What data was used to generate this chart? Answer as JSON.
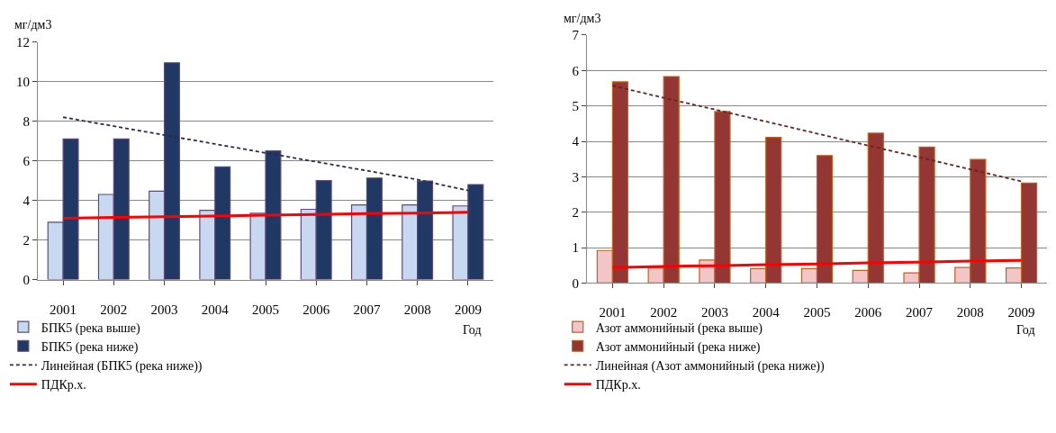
{
  "chart_data": [
    {
      "type": "bar",
      "ylabel": "мг/дм3",
      "xlabel": "Год",
      "categories": [
        "2001",
        "2002",
        "2003",
        "2004",
        "2005",
        "2006",
        "2007",
        "2008",
        "2009"
      ],
      "ylim": [
        0,
        12
      ],
      "yticks": [
        0,
        2,
        4,
        6,
        8,
        10,
        12
      ],
      "grid": "y",
      "legend": "bottom",
      "series": [
        {
          "name": "БПК5 (река выше)",
          "color": "#c6d9f1",
          "values": [
            2.9,
            4.3,
            4.47,
            3.5,
            3.35,
            3.55,
            3.77,
            3.77,
            3.72
          ]
        },
        {
          "name": "БПК5 (река ниже)",
          "color": "#1f3864",
          "values": [
            7.1,
            7.1,
            10.95,
            5.7,
            6.5,
            5.0,
            5.13,
            4.98,
            4.8
          ]
        },
        {
          "name": "Линейная (БПК5 (река ниже))",
          "type": "line",
          "line_style": "dashed",
          "color": "#2b2a4c",
          "values": [
            8.2,
            7.75,
            7.3,
            6.85,
            6.4,
            5.95,
            5.5,
            5.05,
            4.5
          ]
        },
        {
          "name": "ПДКр.х.",
          "type": "line",
          "line_style": "solid",
          "color": "#ff0000",
          "values": [
            3.1,
            3.14,
            3.18,
            3.21,
            3.25,
            3.29,
            3.33,
            3.36,
            3.4
          ]
        }
      ]
    },
    {
      "type": "bar",
      "ylabel": "мг/дм3",
      "xlabel": "Год",
      "categories": [
        "2001",
        "2002",
        "2003",
        "2004",
        "2005",
        "2006",
        "2007",
        "2008",
        "2009"
      ],
      "ylim": [
        0,
        7
      ],
      "yticks": [
        0,
        1,
        2,
        3,
        4,
        5,
        6,
        7
      ],
      "grid": "y",
      "legend": "bottom",
      "series": [
        {
          "name": "Азот аммонийный (река выше)",
          "color": "#f2c6c6",
          "values": [
            0.92,
            0.43,
            0.65,
            0.41,
            0.41,
            0.36,
            0.29,
            0.44,
            0.43
          ]
        },
        {
          "name": "Азот аммонийный (река ниже)",
          "color": "#943634",
          "values": [
            5.68,
            5.83,
            4.84,
            4.11,
            3.6,
            4.23,
            3.84,
            3.49,
            2.82
          ]
        },
        {
          "name": "Линейная (Азот аммонийный (река ниже))",
          "type": "line",
          "line_style": "dashed",
          "color": "#632523",
          "values": [
            5.57,
            5.23,
            4.9,
            4.56,
            4.22,
            3.88,
            3.55,
            3.21,
            2.87
          ]
        },
        {
          "name": "ПДКр.х.",
          "type": "line",
          "line_style": "solid",
          "color": "#ff0000",
          "values": [
            0.44,
            0.47,
            0.49,
            0.52,
            0.54,
            0.57,
            0.59,
            0.62,
            0.64
          ]
        }
      ]
    }
  ]
}
